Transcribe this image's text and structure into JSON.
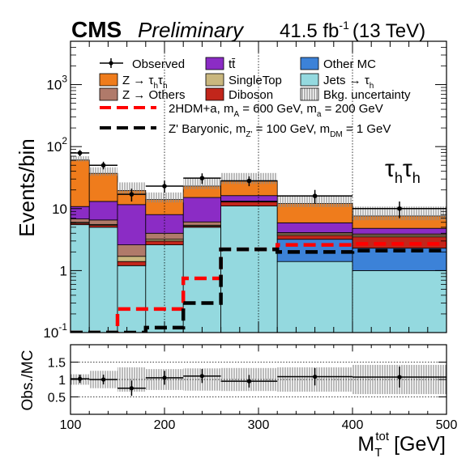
{
  "header": {
    "experiment": "CMS",
    "status": "Preliminary",
    "lumi": "41.5 fb",
    "lumi_exp": "-1",
    "energy": "(13 TeV)"
  },
  "channel": {
    "tau1": "τ",
    "sub1": "h",
    "tau2": "τ",
    "sub2": "h"
  },
  "axes": {
    "ylabel": "Events/bin",
    "ratio_ylabel": "Obs./MC",
    "xlabel_main": "M",
    "xlabel_sub": "T",
    "xlabel_sup": "tot",
    "xlabel_unit": "[GeV]"
  },
  "legend": {
    "observed": "Observed",
    "ztautau_a": "Z → τ",
    "ztautau_b": "h",
    "ztautau_c": "τ",
    "ztautau_d": "h",
    "ttbar": "tt̄",
    "other_mc": "Other MC",
    "zothers": "Z → Others",
    "singletop": "SingleTop",
    "jets_a": "Jets → τ",
    "jets_b": "h",
    "diboson": "Diboson",
    "bkg_unc": "Bkg. uncertainty",
    "sig1": {
      "t1": "2HDM+a, m",
      "s1": "A",
      "t2": " = 600 GeV, m",
      "s2": "a",
      "t3": " = 200 GeV"
    },
    "sig2": {
      "t1": "Z' Baryonic, m",
      "s1": "Z'",
      "t2": " = 100 GeV, m",
      "s2": "DM",
      "t3": " = 1 GeV"
    }
  },
  "colors": {
    "jets": "#94d9df",
    "other_mc": "#3c82d8",
    "diboson": "#c2261b",
    "singletop": "#c9b77e",
    "zothers": "#b07a6a",
    "ttbar": "#8b2cc5",
    "ztautau": "#ef7c1c",
    "sig1": "#ff0000",
    "sig2": "#000000"
  },
  "chart_data": {
    "type": "bar",
    "xlabel": "M_T^tot [GeV]",
    "ylabel": "Events/bin",
    "xlim": [
      100,
      500
    ],
    "ylim": [
      0.1,
      5000
    ],
    "yscale": "log",
    "bin_edges": [
      100,
      120,
      150,
      180,
      220,
      260,
      320,
      400,
      500
    ],
    "x_ticks": [
      100,
      200,
      300,
      400,
      500
    ],
    "y_ticks": [
      {
        "value": 0.1,
        "base": "10",
        "exp": "-1"
      },
      {
        "value": 1,
        "base": "1",
        "exp": ""
      },
      {
        "value": 10,
        "base": "10",
        "exp": ""
      },
      {
        "value": 100,
        "base": "10",
        "exp": "2"
      },
      {
        "value": 1000,
        "base": "10",
        "exp": "3"
      }
    ],
    "vlines": [
      200,
      300,
      400
    ],
    "stack": [
      {
        "key": "jets",
        "values": [
          5.5,
          5.0,
          1.2,
          2.6,
          5.0,
          11.0,
          1.4,
          1.0
        ]
      },
      {
        "key": "other_mc",
        "values": [
          0,
          0,
          0,
          0,
          0,
          0,
          1.8,
          1.3
        ]
      },
      {
        "key": "diboson",
        "values": [
          0.3,
          0.35,
          0.2,
          0.4,
          0.2,
          1.8,
          0.5,
          1.2
        ]
      },
      {
        "key": "singletop",
        "values": [
          0.2,
          0.2,
          0.3,
          0.2,
          0.2,
          0.2,
          0.2,
          0.2
        ]
      },
      {
        "key": "zothers",
        "values": [
          0.8,
          1.0,
          0.9,
          0.8,
          0.7,
          0.2,
          0.2,
          0.2
        ]
      },
      {
        "key": "ttbar",
        "values": [
          4.0,
          6.5,
          9.0,
          4.0,
          9.0,
          3.0,
          1.8,
          0.9
        ]
      },
      {
        "key": "ztautau",
        "values": [
          50,
          24,
          8,
          6,
          8,
          12,
          6.2,
          2.8
        ]
      }
    ],
    "observed": {
      "x": [
        110,
        135,
        165,
        200,
        240,
        290,
        360,
        450
      ],
      "y": [
        79,
        50,
        17,
        23,
        31,
        28,
        16,
        10
      ],
      "y_err": [
        9,
        7,
        4,
        5,
        6,
        5,
        4,
        3
      ]
    },
    "signals": [
      {
        "key": "sig1",
        "values": [
          0.1,
          0.1,
          0.24,
          0.24,
          0.75,
          2.2,
          2.6,
          2.7
        ]
      },
      {
        "key": "sig2",
        "values": [
          0.1,
          0.1,
          0.1,
          0.12,
          0.3,
          2.2,
          2.0,
          2.1
        ]
      }
    ],
    "ratio": {
      "ylim": [
        0,
        2
      ],
      "y_ticks": [
        0.5,
        1,
        1.5
      ],
      "y_tick_labels": [
        "0.5",
        "1",
        "1.5"
      ],
      "gridlines": [
        0.5,
        1,
        1.5
      ],
      "values": [
        1.02,
        1.0,
        0.75,
        1.05,
        1.1,
        0.95,
        1.08,
        1.07
      ],
      "errors": [
        0.12,
        0.14,
        0.22,
        0.2,
        0.2,
        0.18,
        0.25,
        0.3
      ],
      "unc": [
        0.15,
        0.25,
        0.35,
        0.3,
        0.32,
        0.33,
        0.35,
        0.42
      ]
    }
  }
}
